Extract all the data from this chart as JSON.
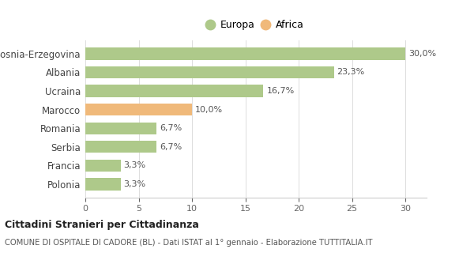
{
  "categories": [
    "Bosnia-Erzegovina",
    "Albania",
    "Ucraina",
    "Marocco",
    "Romania",
    "Serbia",
    "Francia",
    "Polonia"
  ],
  "values": [
    30.0,
    23.3,
    16.7,
    10.0,
    6.7,
    6.7,
    3.3,
    3.3
  ],
  "labels": [
    "30,0%",
    "23,3%",
    "16,7%",
    "10,0%",
    "6,7%",
    "6,7%",
    "3,3%",
    "3,3%"
  ],
  "colors": [
    "#aec98a",
    "#aec98a",
    "#aec98a",
    "#f0b97a",
    "#aec98a",
    "#aec98a",
    "#aec98a",
    "#aec98a"
  ],
  "europa_color": "#aec98a",
  "africa_color": "#f0b97a",
  "xlim": [
    0,
    32
  ],
  "xticks": [
    0,
    5,
    10,
    15,
    20,
    25,
    30
  ],
  "title_bold": "Cittadini Stranieri per Cittadinanza",
  "subtitle": "COMUNE DI OSPITALE DI CADORE (BL) - Dati ISTAT al 1° gennaio - Elaborazione TUTTITALIA.IT",
  "legend_europa": "Europa",
  "legend_africa": "Africa",
  "background_color": "#ffffff"
}
